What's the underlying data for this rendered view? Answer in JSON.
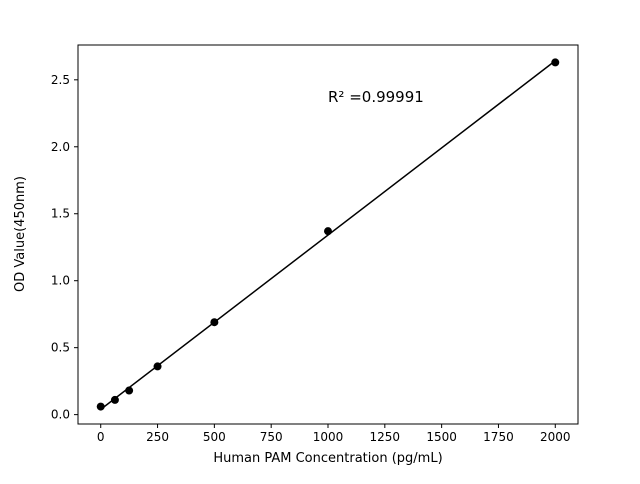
{
  "figure": {
    "background": "#ffffff"
  },
  "chart_data": {
    "type": "scatter",
    "title": "",
    "xlabel": "Human PAM Concentration (pg/mL)",
    "ylabel": "OD Value(450nm)",
    "x": [
      0,
      62.5,
      125,
      250,
      500,
      1000,
      2000
    ],
    "y": [
      0.06,
      0.11,
      0.18,
      0.36,
      0.69,
      1.37,
      2.63
    ],
    "xlim": [
      -100,
      2100
    ],
    "ylim": [
      -0.07,
      2.76
    ],
    "x_ticks": [
      0,
      250,
      500,
      750,
      1000,
      1250,
      1500,
      1750,
      2000
    ],
    "x_tick_labels": [
      "0",
      "250",
      "500",
      "750",
      "1000",
      "1250",
      "1500",
      "1750",
      "2000"
    ],
    "y_ticks": [
      0.0,
      0.5,
      1.0,
      1.5,
      2.0,
      2.5
    ],
    "y_tick_labels": [
      "0.0",
      "0.5",
      "1.0",
      "1.5",
      "2.0",
      "2.5"
    ],
    "annotation": {
      "text": "R² =0.99991",
      "x": 1000,
      "y": 2.33
    },
    "marker_color": "#000000",
    "line_color": "#000000",
    "axis_color": "#000000",
    "grid": false,
    "legend": null,
    "fit_line": true
  }
}
